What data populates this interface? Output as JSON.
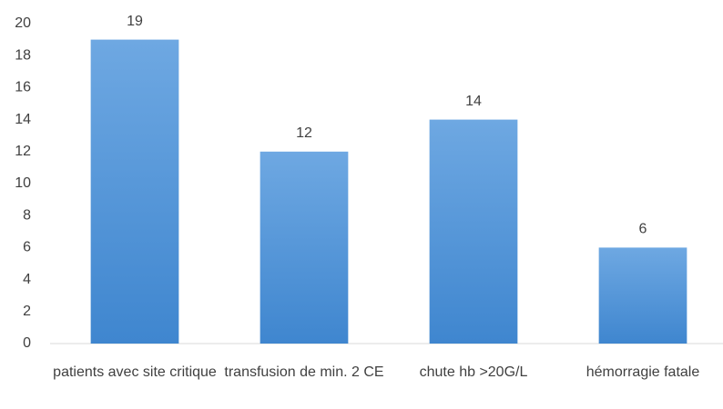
{
  "chart_data": {
    "type": "bar",
    "categories": [
      "patients avec site critique",
      "transfusion de min. 2 CE",
      "chute hb >20G/L",
      "hémorragie fatale"
    ],
    "values": [
      19,
      12,
      14,
      6
    ],
    "color": "#5b9bd5",
    "ylim": [
      0,
      20
    ],
    "yticks": [
      0,
      2,
      4,
      6,
      8,
      10,
      12,
      14,
      16,
      18,
      20
    ],
    "grid": false
  }
}
